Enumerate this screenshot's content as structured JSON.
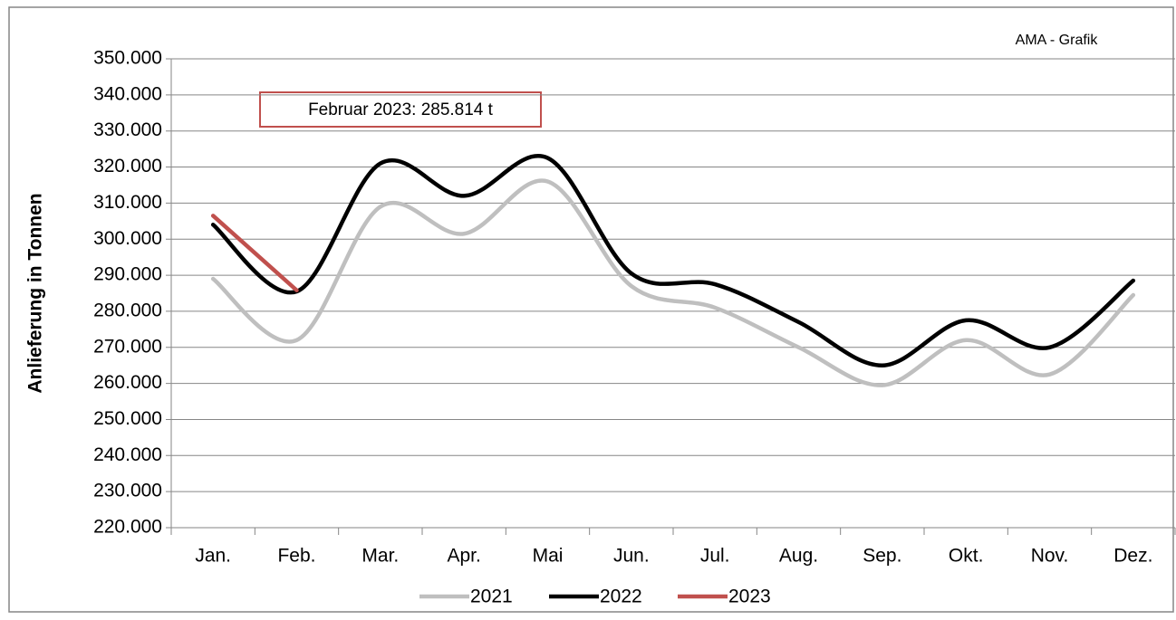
{
  "chart_data": {
    "type": "line",
    "source_note": "AMA - Grafik",
    "annotation": "Februar 2023: 285.814 t",
    "y_label": "Anlieferung in Tonnen",
    "categories": [
      "Jan.",
      "Feb.",
      "Mar.",
      "Apr.",
      "Mai",
      "Jun.",
      "Jul.",
      "Aug.",
      "Sep.",
      "Okt.",
      "Nov.",
      "Dez."
    ],
    "series": [
      {
        "name": "2021",
        "color": "#bfbfbf",
        "values": [
          289000,
          272000,
          309000,
          301500,
          316000,
          287000,
          281000,
          270000,
          259500,
          272000,
          262500,
          284500
        ]
      },
      {
        "name": "2022",
        "color": "#000000",
        "values": [
          304000,
          285500,
          321000,
          312000,
          322500,
          290500,
          287500,
          277000,
          265000,
          277500,
          270000,
          288500
        ]
      },
      {
        "name": "2023",
        "color": "#c0504d",
        "values": [
          306500,
          285814,
          null,
          null,
          null,
          null,
          null,
          null,
          null,
          null,
          null,
          null
        ]
      }
    ],
    "ylim": [
      220000,
      350000
    ],
    "yticks": [
      {
        "value": 220000,
        "label": "220.000"
      },
      {
        "value": 230000,
        "label": "230.000"
      },
      {
        "value": 240000,
        "label": "240.000"
      },
      {
        "value": 250000,
        "label": "250.000"
      },
      {
        "value": 260000,
        "label": "260.000"
      },
      {
        "value": 270000,
        "label": "270.000"
      },
      {
        "value": 280000,
        "label": "280.000"
      },
      {
        "value": 290000,
        "label": "290.000"
      },
      {
        "value": 300000,
        "label": "300.000"
      },
      {
        "value": 310000,
        "label": "310.000"
      },
      {
        "value": 320000,
        "label": "320.000"
      },
      {
        "value": 330000,
        "label": "330.000"
      },
      {
        "value": 340000,
        "label": "340.000"
      },
      {
        "value": 350000,
        "label": "350.000"
      }
    ],
    "grid": true
  }
}
